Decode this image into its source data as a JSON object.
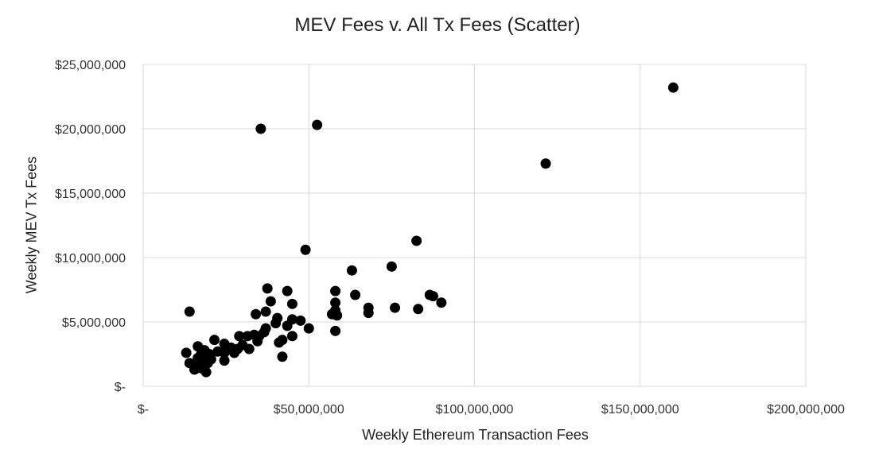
{
  "chart_data": {
    "type": "scatter",
    "title": "MEV Fees v. All Tx Fees (Scatter)",
    "xlabel": "Weekly Ethereum Transaction Fees",
    "ylabel": "Weekly MEV Tx Fees",
    "xlim": [
      0,
      200000000
    ],
    "ylim": [
      0,
      25000000
    ],
    "x_ticks": [
      0,
      50000000,
      100000000,
      150000000,
      200000000
    ],
    "x_tick_labels": [
      "$-",
      "$50,000,000",
      "$100,000,000",
      "$150,000,000",
      "$200,000,000"
    ],
    "y_ticks": [
      0,
      5000000,
      10000000,
      15000000,
      20000000,
      25000000
    ],
    "y_tick_labels": [
      "$-",
      "$5,000,000",
      "$10,000,000",
      "$15,000,000",
      "$20,000,000",
      "$25,000,000"
    ],
    "grid": true,
    "marker_color": "#000000",
    "points": [
      [
        160000000,
        23200000
      ],
      [
        121500000,
        17300000
      ],
      [
        52500000,
        20300000
      ],
      [
        35500000,
        20000000
      ],
      [
        82500000,
        11300000
      ],
      [
        49000000,
        10600000
      ],
      [
        75000000,
        9300000
      ],
      [
        63000000,
        9000000
      ],
      [
        37500000,
        7600000
      ],
      [
        43500000,
        7400000
      ],
      [
        58000000,
        7400000
      ],
      [
        64000000,
        7100000
      ],
      [
        86500000,
        7100000
      ],
      [
        87500000,
        7000000
      ],
      [
        38500000,
        6600000
      ],
      [
        58000000,
        6500000
      ],
      [
        45000000,
        6400000
      ],
      [
        90000000,
        6500000
      ],
      [
        68000000,
        6100000
      ],
      [
        76000000,
        6100000
      ],
      [
        83000000,
        6000000
      ],
      [
        14000000,
        5800000
      ],
      [
        37000000,
        5800000
      ],
      [
        58000000,
        5900000
      ],
      [
        68000000,
        5700000
      ],
      [
        57000000,
        5600000
      ],
      [
        58500000,
        5500000
      ],
      [
        34000000,
        5600000
      ],
      [
        40500000,
        5300000
      ],
      [
        45000000,
        5200000
      ],
      [
        47500000,
        5100000
      ],
      [
        40000000,
        4900000
      ],
      [
        43500000,
        4700000
      ],
      [
        50000000,
        4500000
      ],
      [
        37000000,
        4500000
      ],
      [
        36500000,
        4200000
      ],
      [
        58000000,
        4300000
      ],
      [
        35000000,
        3900000
      ],
      [
        33500000,
        4000000
      ],
      [
        31500000,
        3900000
      ],
      [
        29000000,
        3900000
      ],
      [
        45000000,
        3900000
      ],
      [
        42000000,
        3600000
      ],
      [
        34500000,
        3500000
      ],
      [
        41000000,
        3400000
      ],
      [
        30000000,
        3200000
      ],
      [
        32000000,
        2900000
      ],
      [
        21500000,
        3600000
      ],
      [
        24500000,
        3300000
      ],
      [
        26500000,
        3000000
      ],
      [
        28500000,
        2900000
      ],
      [
        16500000,
        3100000
      ],
      [
        18500000,
        2800000
      ],
      [
        22500000,
        2700000
      ],
      [
        24500000,
        2600000
      ],
      [
        27500000,
        2600000
      ],
      [
        13000000,
        2600000
      ],
      [
        17500000,
        2500000
      ],
      [
        20000000,
        2500000
      ],
      [
        16500000,
        2200000
      ],
      [
        18500000,
        2200000
      ],
      [
        20500000,
        2100000
      ],
      [
        24500000,
        2000000
      ],
      [
        42000000,
        2300000
      ],
      [
        17000000,
        1900000
      ],
      [
        19500000,
        1800000
      ],
      [
        14000000,
        1800000
      ],
      [
        18000000,
        1700000
      ],
      [
        16000000,
        1500000
      ],
      [
        15500000,
        1300000
      ],
      [
        17500000,
        1400000
      ],
      [
        19000000,
        1100000
      ]
    ]
  }
}
